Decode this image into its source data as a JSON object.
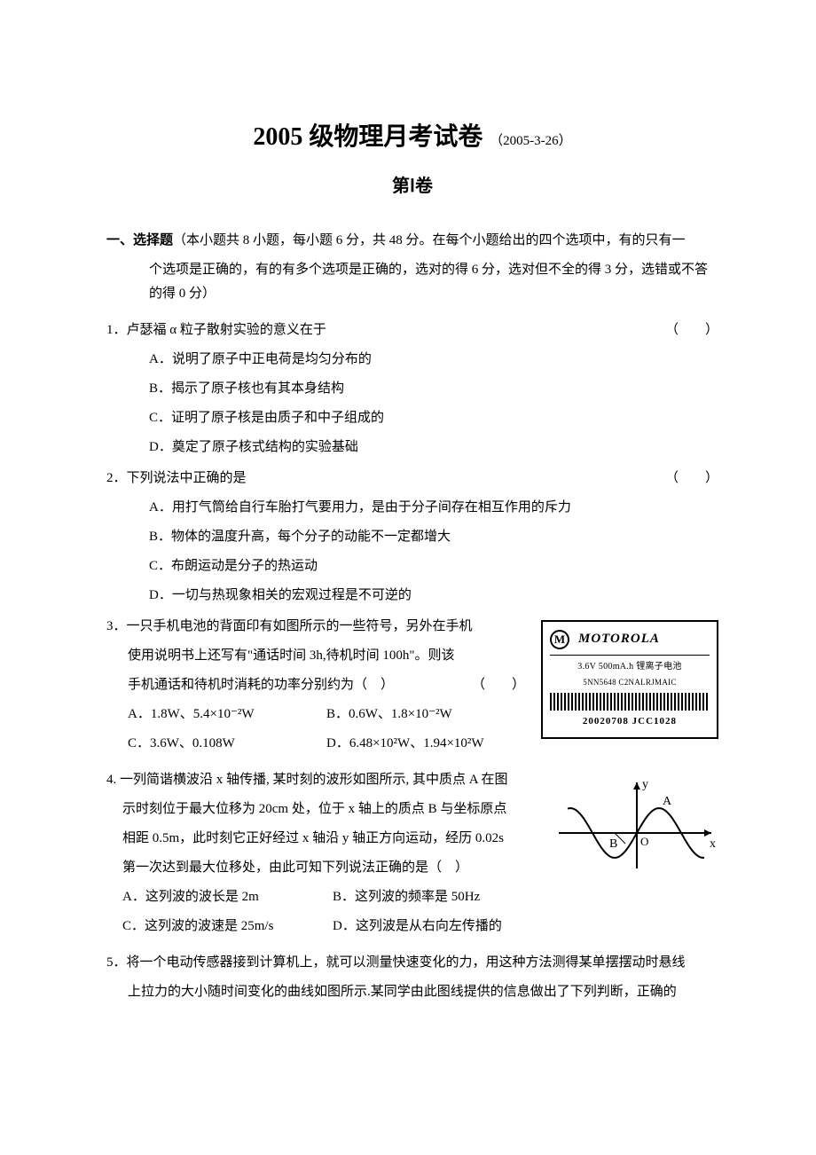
{
  "page": {
    "title_main": "2005 级物理月考试卷",
    "title_date": "（2005-3-26）",
    "part_label": "第Ⅰ卷"
  },
  "section1": {
    "heading_label": "一、选择题",
    "heading_desc": "（本小题共 8 小题，每小题 6 分，共 48 分。在每个小题给出的四个选项中，有的只有一",
    "heading_cont": "个选项是正确的，有的有多个选项是正确的，选对的得 6 分，选对但不全的得 3 分，选错或不答的得 0 分）"
  },
  "q1": {
    "stem": "1．卢瑟福 α 粒子散射实验的意义在于",
    "paren": "（　　）",
    "A": "A．说明了原子中正电荷是均匀分布的",
    "B": "B．揭示了原子核也有其本身结构",
    "C": "C．证明了原子核是由质子和中子组成的",
    "D": "D．奠定了原子核式结构的实验基础"
  },
  "q2": {
    "stem": "2．下列说法中正确的是",
    "paren": "（　　）",
    "A": "A．用打气筒给自行车胎打气要用力，是由于分子间存在相互作用的斥力",
    "B": "B．物体的温度升高，每个分子的动能不一定都增大",
    "C": "C．布朗运动是分子的热运动",
    "D": "D．一切与热现象相关的宏观过程是不可逆的"
  },
  "q3": {
    "stem1": "3．一只手机电池的背面印有如图所示的一些符号，另外在手机",
    "stem2": "使用说明书上还写有\"通话时间 3h,待机时间 100h\"。则该",
    "stem3": "手机通话和待机时消耗的功率分别约为（　）",
    "paren": "（　　）",
    "A": "A．1.8W、5.4×10⁻²W",
    "B": "B．0.6W、1.8×10⁻²W",
    "C": "C．3.6W、0.108W",
    "D": "D．6.48×10²W、1.94×10²W"
  },
  "battery": {
    "brand": "MOTOROLA",
    "spec": "3.6V 500mA.h 锂离子电池",
    "code": "5NN5648 C2NALRJMAIC",
    "date": "20020708 JCC1028"
  },
  "q4": {
    "stem1": "4. 一列简谐横波沿 x 轴传播, 某时刻的波形如图所示, 其中质点 A 在图",
    "stem2": "示时刻位于最大位移为 20cm 处，位于 x 轴上的质点 B 与坐标原点",
    "stem3": "相距 0.5m，此时刻它正好经过 x 轴沿 y 轴正方向运动，经历 0.02s",
    "stem4": "第一次达到最大位移处，由此可知下列说法正确的是（　）",
    "A": "A．这列波的波长是 2m",
    "B": "B．这列波的频率是 50Hz",
    "C": "C．这列波的波速是 25m/s",
    "D": "D．这列波是从右向左传播的"
  },
  "wave_fig": {
    "A_label": "A",
    "B_label": "B",
    "O_label": "O",
    "x_label": "x",
    "y_label": "y",
    "curve_color": "#000000",
    "axis_color": "#000000",
    "line_width": 2,
    "amplitude": 28,
    "wavelength": 100,
    "view": "0 0 180 110"
  },
  "q5": {
    "stem1": "5．将一个电动传感器接到计算机上，就可以测量快速变化的力，用这种方法测得某单摆摆动时悬线",
    "stem2": "上拉力的大小随时间变化的曲线如图所示.某同学由此图线提供的信息做出了下列判断，正确的"
  }
}
